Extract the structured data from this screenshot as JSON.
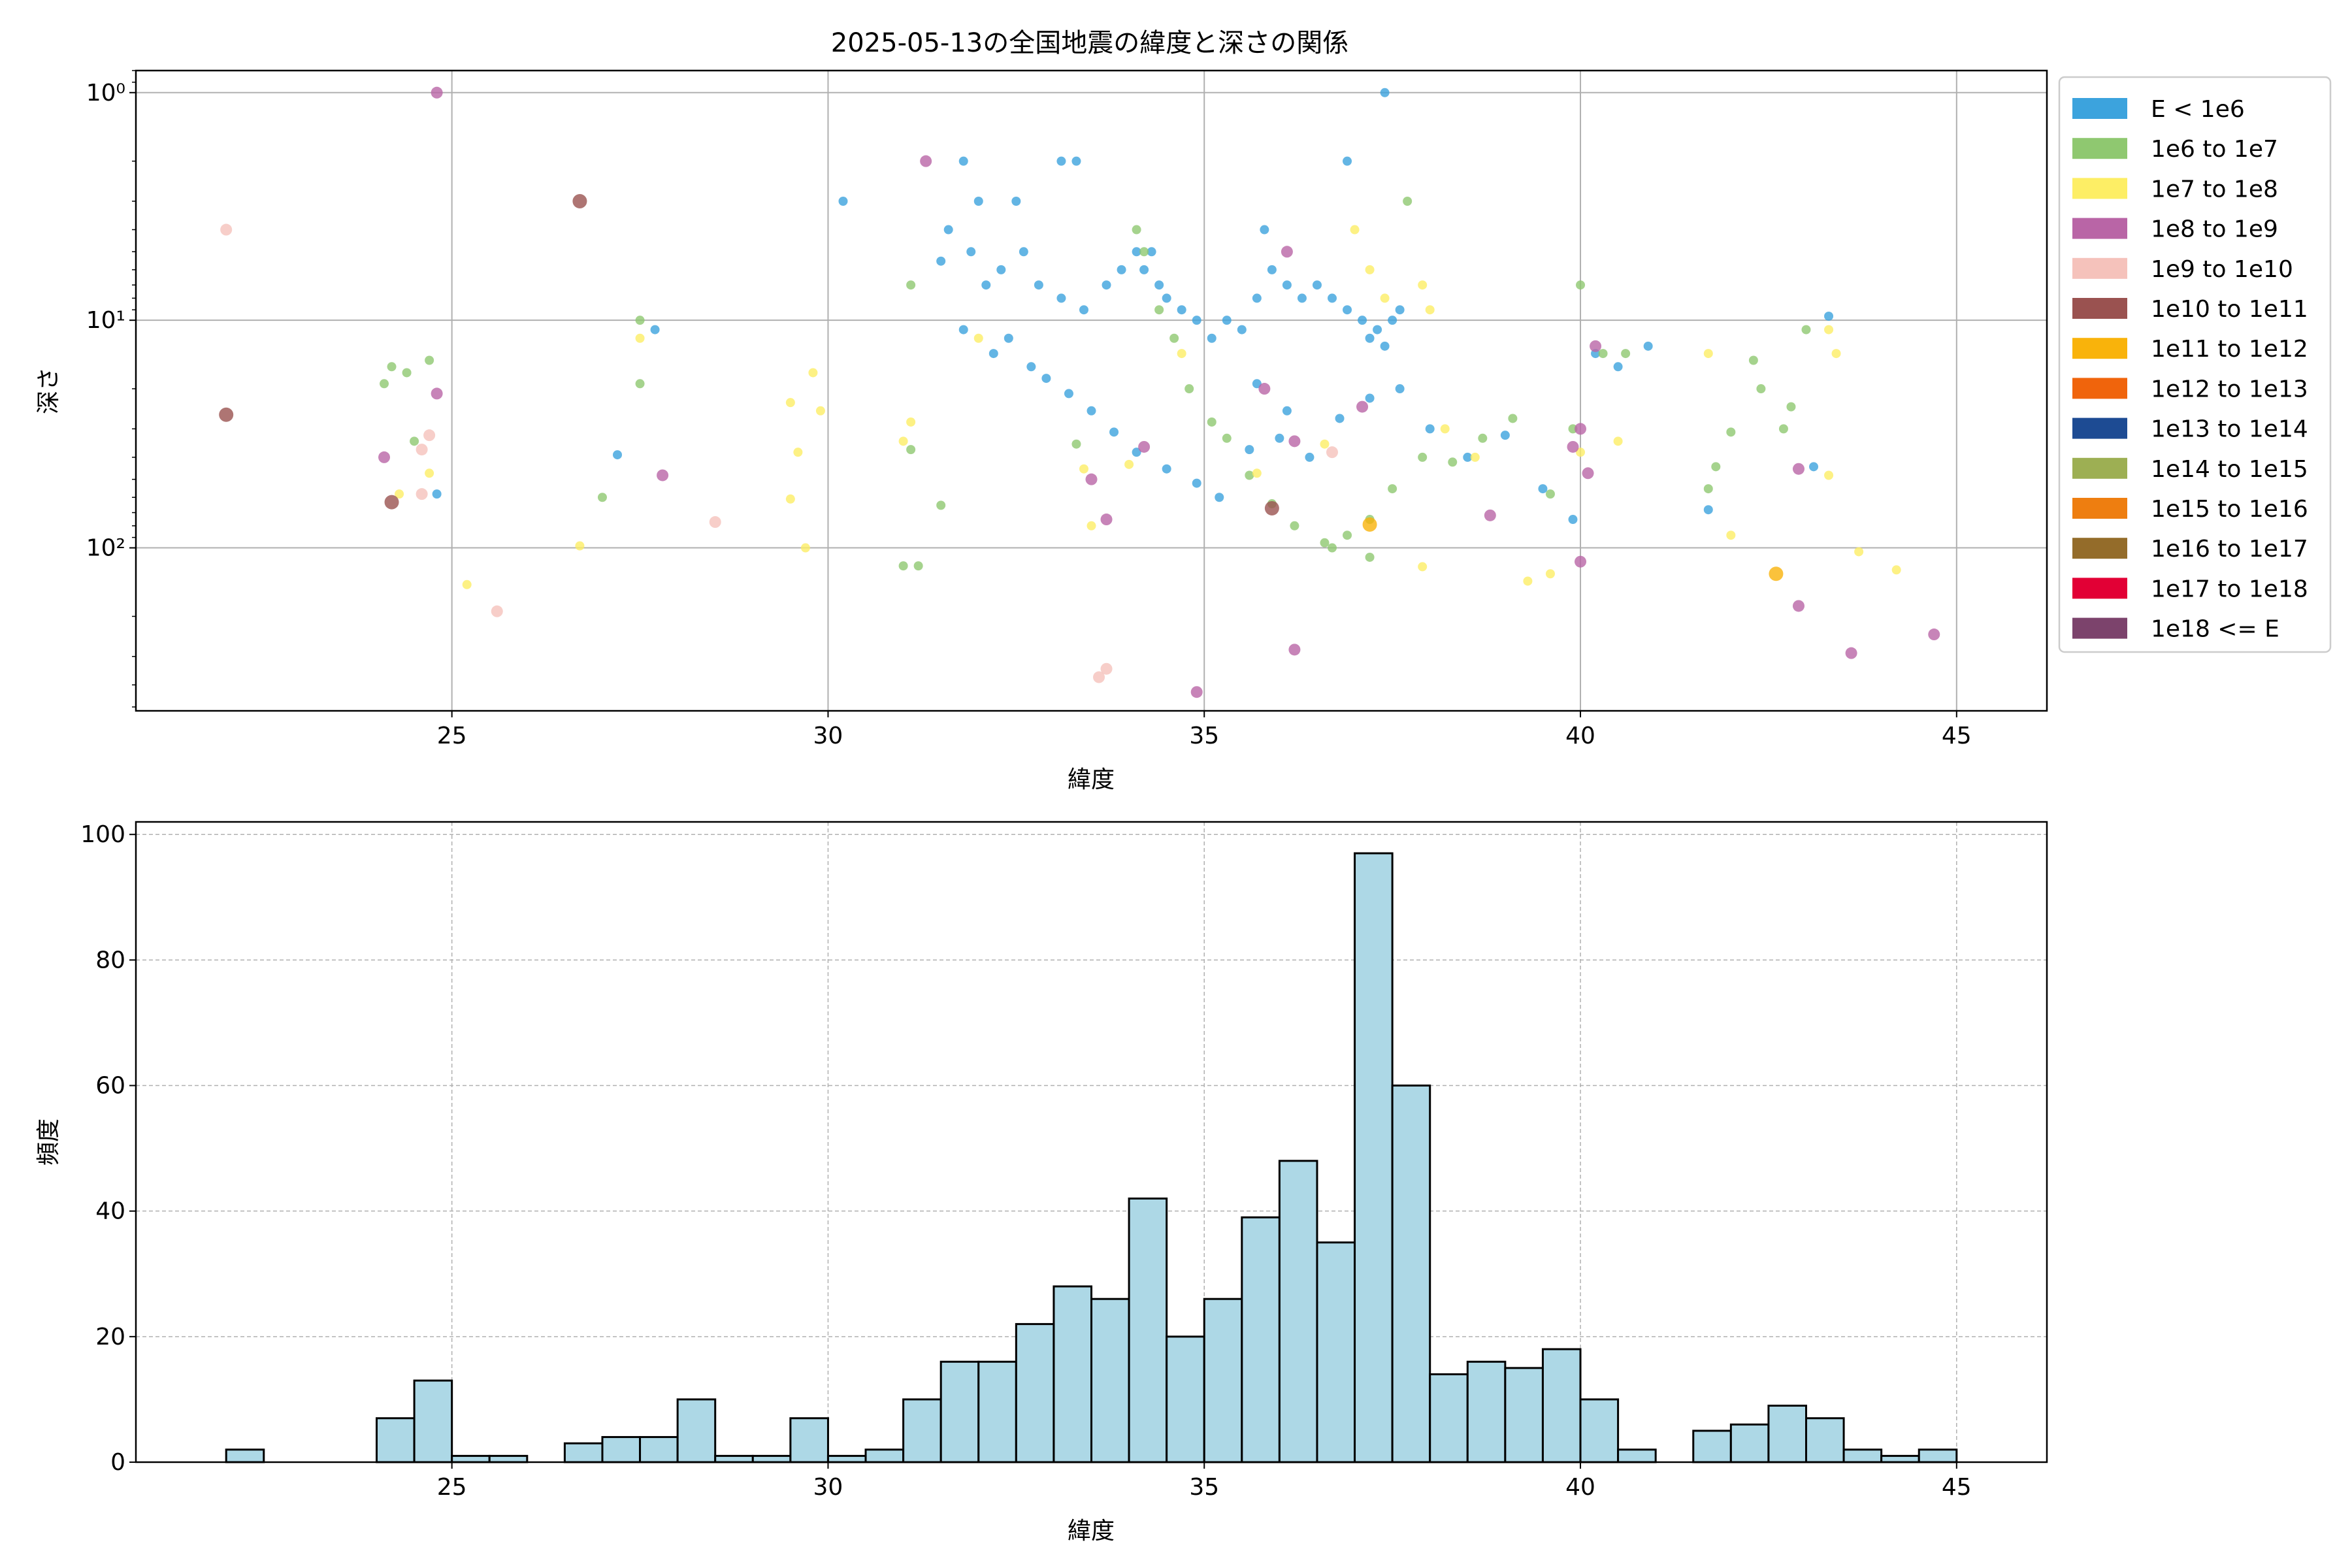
{
  "figure": {
    "title": "2025-05-13の全国地震の緯度と深さの関係"
  },
  "chart_data": [
    {
      "type": "scatter",
      "xlabel": "緯度",
      "ylabel": "深さ",
      "xlim": [
        20.8,
        46.2
      ],
      "ylim": [
        520,
        0.8
      ],
      "y_scale": "log-inverted",
      "xticks": [
        25,
        30,
        35,
        40,
        45
      ],
      "xtick_labels": [
        "25",
        "30",
        "35",
        "40",
        "45"
      ],
      "yticks": [
        1,
        10,
        100
      ],
      "ytick_labels": [
        "10⁰",
        "10¹",
        "10²"
      ],
      "grid": true,
      "legend_position": "outside-right",
      "legend": [
        {
          "name": "E < 1e6",
          "color": "#3ca3dd"
        },
        {
          "name": "1e6 to 1e7",
          "color": "#8fc870"
        },
        {
          "name": "1e7 to 1e8",
          "color": "#fdee65"
        },
        {
          "name": "1e8 to 1e9",
          "color": "#b965a6"
        },
        {
          "name": "1e9 to 1e10",
          "color": "#f5c2bb"
        },
        {
          "name": "1e10 to 1e11",
          "color": "#9a5250"
        },
        {
          "name": "1e11 to 1e12",
          "color": "#f9b30b"
        },
        {
          "name": "1e12 to 1e13",
          "color": "#f0640c"
        },
        {
          "name": "1e13 to 1e14",
          "color": "#1d4b93"
        },
        {
          "name": "1e14 to 1e15",
          "color": "#9daf53"
        },
        {
          "name": "1e15 to 1e16",
          "color": "#ee7e10"
        },
        {
          "name": "1e16 to 1e17",
          "color": "#946c2a"
        },
        {
          "name": "1e17 to 1e18",
          "color": "#e20035"
        },
        {
          "name": "1e18 <= E",
          "color": "#7c436c"
        }
      ],
      "series": [
        {
          "name": "E < 1e6",
          "points": [
            [
              31.5,
              5.5
            ],
            [
              31.6,
              4
            ],
            [
              31.9,
              5
            ],
            [
              32.1,
              7
            ],
            [
              32.3,
              6
            ],
            [
              32.5,
              3
            ],
            [
              32.6,
              5
            ],
            [
              32.8,
              7
            ],
            [
              33.1,
              8
            ],
            [
              33.4,
              9
            ],
            [
              33.7,
              7
            ],
            [
              33.9,
              6
            ],
            [
              34.1,
              5
            ],
            [
              34.2,
              6
            ],
            [
              34.3,
              5
            ],
            [
              34.4,
              7
            ],
            [
              34.5,
              8
            ],
            [
              34.7,
              9
            ],
            [
              34.9,
              10
            ],
            [
              35.1,
              12
            ],
            [
              35.3,
              10
            ],
            [
              35.5,
              11
            ],
            [
              35.7,
              8
            ],
            [
              35.9,
              6
            ],
            [
              36.1,
              7
            ],
            [
              36.3,
              8
            ],
            [
              36.5,
              7
            ],
            [
              36.7,
              8
            ],
            [
              36.9,
              9
            ],
            [
              37.1,
              10
            ],
            [
              37.2,
              12
            ],
            [
              37.3,
              11
            ],
            [
              37.4,
              13
            ],
            [
              37.5,
              10
            ],
            [
              37.6,
              9
            ],
            [
              31.8,
              11
            ],
            [
              32.2,
              14
            ],
            [
              32.4,
              12
            ],
            [
              32.7,
              16
            ],
            [
              32.9,
              18
            ],
            [
              33.2,
              21
            ],
            [
              33.5,
              25
            ],
            [
              33.8,
              31
            ],
            [
              34.1,
              38
            ],
            [
              34.5,
              45
            ],
            [
              34.9,
              52
            ],
            [
              35.2,
              60
            ],
            [
              35.6,
              37
            ],
            [
              36.0,
              33
            ],
            [
              36.4,
              40
            ],
            [
              36.8,
              27
            ],
            [
              37.2,
              22
            ],
            [
              37.6,
              20
            ],
            [
              38.0,
              30
            ],
            [
              38.5,
              40
            ],
            [
              39.0,
              32
            ],
            [
              39.5,
              55
            ],
            [
              39.9,
              75
            ],
            [
              40.2,
              14
            ],
            [
              40.5,
              16
            ],
            [
              40.9,
              13
            ],
            [
              43.1,
              44
            ],
            [
              43.3,
              9.6
            ],
            [
              41.7,
              68
            ],
            [
              36.1,
              25
            ],
            [
              35.7,
              19
            ],
            [
              33.1,
              2
            ],
            [
              33.3,
              2
            ],
            [
              32.0,
              3
            ],
            [
              31.8,
              2
            ],
            [
              30.2,
              3
            ],
            [
              24.8,
              58
            ],
            [
              27.2,
              39
            ],
            [
              27.7,
              11
            ],
            [
              35.8,
              4
            ],
            [
              36.9,
              2
            ],
            [
              37.4,
              1
            ]
          ]
        },
        {
          "name": "1e6 to 1e7",
          "points": [
            [
              24.2,
              16
            ],
            [
              24.4,
              17
            ],
            [
              24.7,
              15
            ],
            [
              24.1,
              19
            ],
            [
              27.5,
              10
            ],
            [
              27.5,
              19
            ],
            [
              24.5,
              34
            ],
            [
              27.0,
              60
            ],
            [
              31.5,
              65
            ],
            [
              31.1,
              7
            ],
            [
              31.1,
              37
            ],
            [
              31.0,
              120
            ],
            [
              31.2,
              120
            ],
            [
              33.3,
              35
            ],
            [
              34.1,
              4
            ],
            [
              34.2,
              5
            ],
            [
              34.4,
              9
            ],
            [
              34.6,
              12
            ],
            [
              34.8,
              20
            ],
            [
              35.1,
              28
            ],
            [
              35.3,
              33
            ],
            [
              35.6,
              48
            ],
            [
              35.9,
              64
            ],
            [
              36.2,
              80
            ],
            [
              36.6,
              95
            ],
            [
              36.9,
              88
            ],
            [
              37.2,
              75
            ],
            [
              37.5,
              55
            ],
            [
              37.9,
              40
            ],
            [
              38.3,
              42
            ],
            [
              38.7,
              33
            ],
            [
              39.1,
              27
            ],
            [
              39.6,
              58
            ],
            [
              39.9,
              30
            ],
            [
              40.0,
              7
            ],
            [
              40.3,
              14
            ],
            [
              40.6,
              14
            ],
            [
              42.0,
              31
            ],
            [
              42.3,
              15
            ],
            [
              42.4,
              20
            ],
            [
              42.7,
              30
            ],
            [
              42.8,
              24
            ],
            [
              41.7,
              55
            ],
            [
              41.8,
              44
            ],
            [
              43.0,
              11
            ],
            [
              37.7,
              3
            ],
            [
              37.2,
              110
            ],
            [
              36.7,
              100
            ]
          ]
        },
        {
          "name": "1e7 to 1e8",
          "points": [
            [
              24.7,
              47
            ],
            [
              24.3,
              58
            ],
            [
              25.2,
              145
            ],
            [
              26.7,
              98
            ],
            [
              27.5,
              12
            ],
            [
              29.5,
              23
            ],
            [
              29.5,
              61
            ],
            [
              29.7,
              100
            ],
            [
              29.8,
              17
            ],
            [
              29.9,
              25
            ],
            [
              29.6,
              38
            ],
            [
              31.0,
              34
            ],
            [
              31.1,
              28
            ],
            [
              32.0,
              12
            ],
            [
              33.4,
              45
            ],
            [
              33.5,
              80
            ],
            [
              34.0,
              43
            ],
            [
              34.7,
              14
            ],
            [
              35.7,
              47
            ],
            [
              36.6,
              35
            ],
            [
              37.0,
              4
            ],
            [
              37.2,
              6
            ],
            [
              37.4,
              8
            ],
            [
              37.9,
              7
            ],
            [
              38.0,
              9
            ],
            [
              38.2,
              30
            ],
            [
              38.6,
              40
            ],
            [
              39.3,
              140
            ],
            [
              39.6,
              130
            ],
            [
              40.0,
              38
            ],
            [
              40.5,
              34
            ],
            [
              41.7,
              14
            ],
            [
              42.0,
              88
            ],
            [
              43.3,
              48
            ],
            [
              43.3,
              11
            ],
            [
              43.4,
              14
            ],
            [
              43.7,
              104
            ],
            [
              44.2,
              125
            ],
            [
              37.9,
              121
            ]
          ]
        },
        {
          "name": "1e8 to 1e9",
          "points": [
            [
              24.8,
              1
            ],
            [
              24.1,
              40
            ],
            [
              24.8,
              21
            ],
            [
              27.8,
              48
            ],
            [
              31.3,
              2
            ],
            [
              33.7,
              75
            ],
            [
              33.5,
              50
            ],
            [
              34.2,
              36
            ],
            [
              35.8,
              20
            ],
            [
              36.1,
              5
            ],
            [
              36.2,
              34
            ],
            [
              36.2,
              280
            ],
            [
              38.8,
              72
            ],
            [
              39.9,
              36
            ],
            [
              40.0,
              30
            ],
            [
              40.1,
              47
            ],
            [
              40.2,
              13
            ],
            [
              40.0,
              115
            ],
            [
              42.9,
              45
            ],
            [
              42.9,
              180
            ],
            [
              43.6,
              290
            ],
            [
              44.7,
              240
            ],
            [
              34.9,
              430
            ],
            [
              37.1,
              24
            ]
          ]
        },
        {
          "name": "1e9 to 1e10",
          "points": [
            [
              22.0,
              4
            ],
            [
              24.6,
              37
            ],
            [
              24.7,
              32
            ],
            [
              24.6,
              58
            ],
            [
              28.5,
              77
            ],
            [
              25.6,
              190
            ],
            [
              33.6,
              370
            ],
            [
              33.7,
              340
            ],
            [
              36.7,
              38
            ]
          ]
        },
        {
          "name": "1e10 to 1e11",
          "points": [
            [
              22.0,
              26
            ],
            [
              26.7,
              3
            ],
            [
              24.2,
              63
            ],
            [
              35.9,
              67
            ]
          ]
        },
        {
          "name": "1e11 to 1e12",
          "points": [
            [
              37.2,
              79
            ],
            [
              42.6,
              130
            ]
          ]
        }
      ]
    },
    {
      "type": "bar",
      "subtype": "histogram",
      "xlabel": "緯度",
      "ylabel": "頻度",
      "xlim": [
        20.8,
        46.2
      ],
      "ylim": [
        0,
        102
      ],
      "xticks": [
        25,
        30,
        35,
        40,
        45
      ],
      "xtick_labels": [
        "25",
        "30",
        "35",
        "40",
        "45"
      ],
      "yticks": [
        0,
        20,
        40,
        60,
        80,
        100
      ],
      "ytick_labels": [
        "0",
        "20",
        "40",
        "60",
        "80",
        "100"
      ],
      "grid": true,
      "bin_start": 22,
      "bin_width": 0.5,
      "values": [
        2,
        0,
        0,
        0,
        7,
        13,
        1,
        1,
        0,
        3,
        4,
        4,
        10,
        1,
        1,
        7,
        1,
        2,
        10,
        16,
        16,
        22,
        28,
        26,
        42,
        20,
        26,
        39,
        48,
        35,
        97,
        60,
        14,
        16,
        15,
        18,
        10,
        2,
        0,
        5,
        6,
        9,
        7,
        2,
        1,
        2
      ],
      "bar_color": "#add8e6",
      "edge_color": "#000000"
    }
  ]
}
